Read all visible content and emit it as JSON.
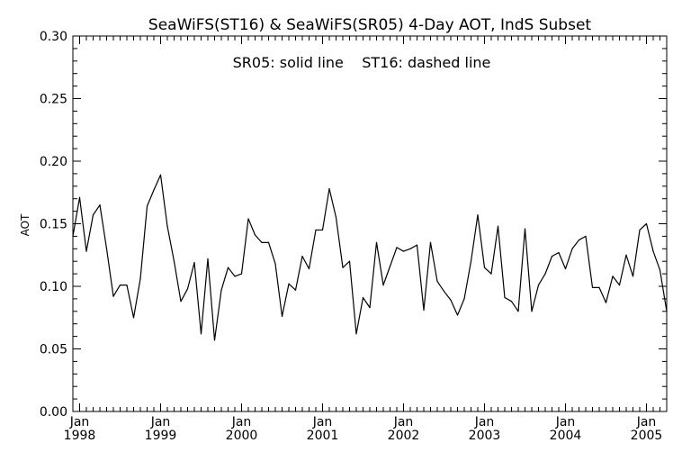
{
  "chart_data": {
    "type": "line",
    "title": "SeaWiFS(ST16) & SeaWiFS(SR05) 4-Day AOT, IndS Subset",
    "annotation": "SR05: solid line    ST16: dashed line",
    "xlabel": "",
    "ylabel": "AOT",
    "xlim": [
      "1997-12",
      "2005-04"
    ],
    "ylim": [
      0.0,
      0.3
    ],
    "grid": false,
    "y_ticks": [
      "0.00",
      "0.05",
      "0.10",
      "0.15",
      "0.20",
      "0.25",
      "0.30"
    ],
    "x_ticks": [
      {
        "month": "Jan",
        "year": "1998"
      },
      {
        "month": "Jan",
        "year": "1999"
      },
      {
        "month": "Jan",
        "year": "2000"
      },
      {
        "month": "Jan",
        "year": "2001"
      },
      {
        "month": "Jan",
        "year": "2002"
      },
      {
        "month": "Jan",
        "year": "2003"
      },
      {
        "month": "Jan",
        "year": "2004"
      },
      {
        "month": "Jan",
        "year": "2005"
      }
    ],
    "series": [
      {
        "name": "SR05",
        "style": "solid",
        "color": "#000000",
        "x": [
          "1997-12",
          "1998-01",
          "1998-02",
          "1998-03",
          "1998-04",
          "1998-05",
          "1998-06",
          "1998-07",
          "1998-08",
          "1998-09",
          "1998-10",
          "1998-11",
          "1998-12",
          "1999-01",
          "1999-02",
          "1999-03",
          "1999-04",
          "1999-05",
          "1999-06",
          "1999-07",
          "1999-08",
          "1999-09",
          "1999-10",
          "1999-11",
          "1999-12",
          "2000-01",
          "2000-02",
          "2000-03",
          "2000-04",
          "2000-05",
          "2000-06",
          "2000-07",
          "2000-08",
          "2000-09",
          "2000-10",
          "2000-11",
          "2000-12",
          "2001-01",
          "2001-02",
          "2001-03",
          "2001-04",
          "2001-05",
          "2001-06",
          "2001-07",
          "2001-08",
          "2001-09",
          "2001-10",
          "2001-11",
          "2001-12",
          "2002-01",
          "2002-02",
          "2002-03",
          "2002-04",
          "2002-05",
          "2002-06",
          "2002-07",
          "2002-08",
          "2002-09",
          "2002-10",
          "2002-11",
          "2002-12",
          "2003-01",
          "2003-02",
          "2003-03",
          "2003-04",
          "2003-05",
          "2003-06",
          "2003-07",
          "2003-08",
          "2003-09",
          "2003-10",
          "2003-11",
          "2003-12",
          "2004-01",
          "2004-02",
          "2004-03",
          "2004-04",
          "2004-05",
          "2004-06",
          "2004-07",
          "2004-08",
          "2004-09",
          "2004-10",
          "2004-11",
          "2004-12",
          "2005-01",
          "2005-02",
          "2005-03",
          "2005-04"
        ],
        "values": [
          0.14,
          0.171,
          0.128,
          0.157,
          0.165,
          0.13,
          0.092,
          0.101,
          0.101,
          0.075,
          0.106,
          0.164,
          0.177,
          0.189,
          0.148,
          0.12,
          0.088,
          0.098,
          0.119,
          0.062,
          0.122,
          0.057,
          0.097,
          0.115,
          0.108,
          0.11,
          0.154,
          0.141,
          0.135,
          0.135,
          0.118,
          0.076,
          0.102,
          0.097,
          0.124,
          0.114,
          0.145,
          0.145,
          0.178,
          0.155,
          0.115,
          0.12,
          0.062,
          0.091,
          0.083,
          0.135,
          0.101,
          0.116,
          0.131,
          0.128,
          0.13,
          0.133,
          0.081,
          0.135,
          0.104,
          0.096,
          0.089,
          0.077,
          0.09,
          0.12,
          0.157,
          0.115,
          0.11,
          0.148,
          0.091,
          0.088,
          0.08,
          0.146,
          0.08,
          0.101,
          0.11,
          0.124,
          0.127,
          0.114,
          0.13,
          0.137,
          0.14,
          0.099,
          0.099,
          0.087,
          0.108,
          0.101,
          0.125,
          0.108,
          0.145,
          0.15,
          0.128,
          0.113,
          0.08
        ]
      }
    ]
  }
}
